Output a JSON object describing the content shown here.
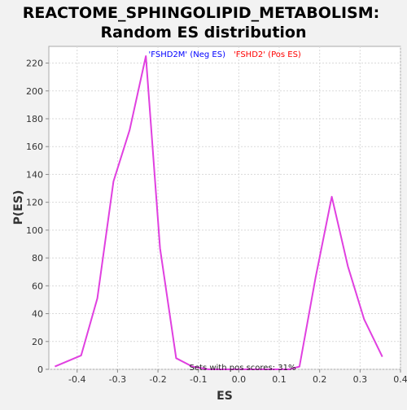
{
  "chart_data": {
    "type": "line",
    "title_line1": "REACTOME_SPHINGOLIPID_METABOLISM:",
    "title_line2": "Random ES distribution",
    "xlabel": "ES",
    "ylabel": "P(ES)",
    "xlim": [
      -0.47,
      0.4
    ],
    "ylim": [
      0,
      232
    ],
    "x_ticks": [
      -0.4,
      -0.3,
      -0.2,
      -0.1,
      0.0,
      0.1,
      0.2,
      0.3,
      0.4
    ],
    "x_tick_labels": [
      "-0.4",
      "-0.3",
      "-0.2",
      "-0.1",
      "0.0",
      "0.1",
      "0.2",
      "0.3",
      "0.4"
    ],
    "y_ticks": [
      0,
      20,
      40,
      60,
      80,
      100,
      120,
      140,
      160,
      180,
      200,
      220
    ],
    "y_tick_labels": [
      "0",
      "20",
      "40",
      "60",
      "80",
      "100",
      "120",
      "140",
      "160",
      "180",
      "200",
      "220"
    ],
    "grid": true,
    "legend": [
      {
        "label": "'FSHD2M' (Neg ES)",
        "color": "#0000ff"
      },
      {
        "label": "'FSHD2' (Pos ES)",
        "color": "#ff0000"
      }
    ],
    "annotation": "Sets with pos scores: 31%",
    "series": [
      {
        "color": "#e040e0",
        "x": [
          -0.455,
          -0.39,
          -0.35,
          -0.31,
          -0.27,
          -0.23,
          -0.195,
          -0.155,
          -0.115,
          -0.075,
          -0.035,
          0.005,
          0.045,
          0.085,
          0.125,
          0.15,
          0.19,
          0.23,
          0.27,
          0.31,
          0.355
        ],
        "y": [
          2,
          10,
          51,
          135,
          172,
          225,
          87,
          8,
          2,
          0,
          0,
          0,
          0,
          0,
          0,
          2,
          66,
          124,
          74,
          36,
          9
        ]
      }
    ]
  }
}
